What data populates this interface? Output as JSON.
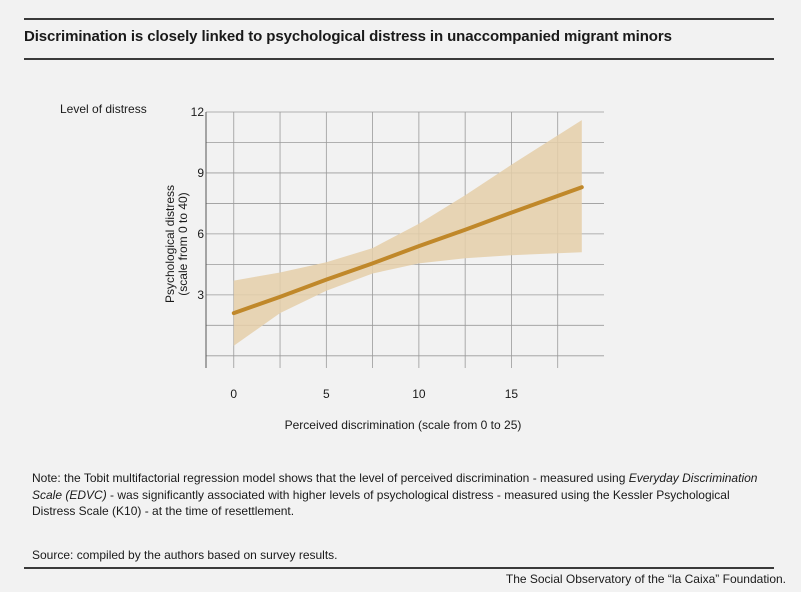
{
  "title": "Discrimination is closely linked to psychological distress in unaccompanied migrant minors",
  "y_header": "Level of distress",
  "chart_data": {
    "type": "line",
    "title": "",
    "xlabel": "Perceived discrimination (scale from 0 to 25)",
    "ylabel_line1": "Psychological distress",
    "ylabel_line2": "(scale from 0 to 40)",
    "xlim": [
      -1.5,
      20
    ],
    "ylim": [
      -0.6,
      12
    ],
    "xticks": [
      0,
      5,
      10,
      15
    ],
    "yticks": [
      3,
      6,
      9,
      12
    ],
    "grid": true,
    "line_color": "#c0882a",
    "band_color": "#e5cfa9",
    "series": [
      {
        "x": [
          0,
          2.5,
          5,
          7.5,
          10,
          12.5,
          15,
          18.8
        ],
        "y": [
          2.1,
          2.9,
          3.75,
          4.55,
          5.4,
          6.2,
          7.05,
          8.3
        ],
        "lower": [
          0.5,
          2.1,
          3.2,
          4.05,
          4.55,
          4.8,
          4.95,
          5.1
        ],
        "upper": [
          3.7,
          4.1,
          4.6,
          5.3,
          6.5,
          7.9,
          9.4,
          11.6
        ]
      }
    ]
  },
  "note_prefix": "Note: the Tobit multifactorial regression model shows that the level of perceived discrimination - measured using ",
  "note_italic": "Everyday Discrimination Scale (EDVC)",
  "note_suffix": " - was significantly associated with higher levels of psychological distress - measured using the Kessler Psychological Distress Scale (K10) - at the time of resettlement.",
  "source": "Source: compiled by the authors based on survey results.",
  "credit": "The Social Observatory of the “la Caixa” Foundation."
}
